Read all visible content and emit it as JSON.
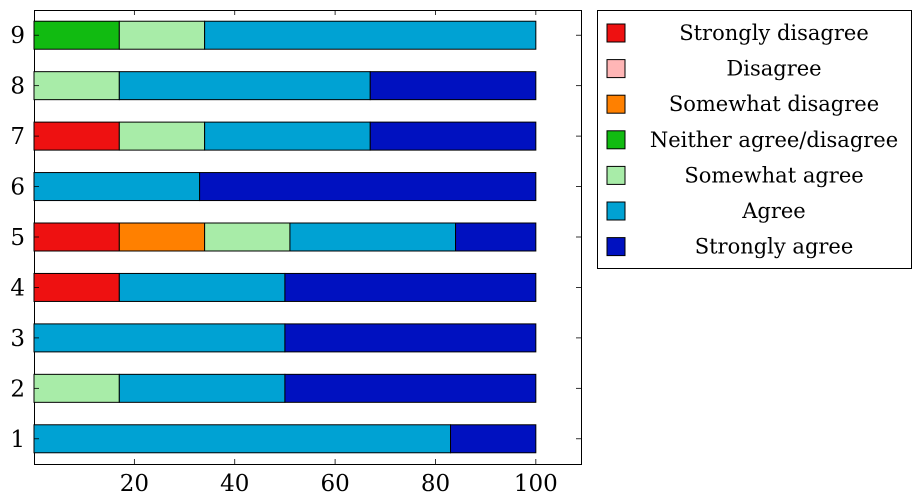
{
  "chart_data": {
    "type": "bar",
    "orientation": "horizontal",
    "stacked": true,
    "categories": [
      "1",
      "2",
      "3",
      "4",
      "5",
      "6",
      "7",
      "8",
      "9"
    ],
    "xlim": [
      0,
      109
    ],
    "x_ticks": [
      20,
      40,
      60,
      80,
      100
    ],
    "grid": false,
    "legend_position": "right-top",
    "series": [
      {
        "name": "Strongly disagree",
        "color": "#ee1111",
        "values": [
          0,
          0,
          0,
          17,
          17,
          0,
          17,
          0,
          0
        ]
      },
      {
        "name": "Disagree",
        "color": "#ffb6b6",
        "values": [
          0,
          0,
          0,
          0,
          0,
          0,
          0,
          0,
          0
        ]
      },
      {
        "name": "Somewhat disagree",
        "color": "#ff8000",
        "values": [
          0,
          0,
          0,
          0,
          17,
          0,
          0,
          0,
          0
        ]
      },
      {
        "name": "Neither agree/disagree",
        "color": "#11bb11",
        "values": [
          0,
          0,
          0,
          0,
          0,
          0,
          0,
          0,
          17
        ]
      },
      {
        "name": "Somewhat agree",
        "color": "#a8eca8",
        "values": [
          0,
          17,
          0,
          0,
          17,
          0,
          17,
          17,
          17
        ]
      },
      {
        "name": "Agree",
        "color": "#00a2d3",
        "values": [
          83,
          33,
          50,
          33,
          33,
          33,
          33,
          50,
          66
        ]
      },
      {
        "name": "Strongly agree",
        "color": "#0011c0",
        "values": [
          17,
          50,
          50,
          50,
          16,
          67,
          33,
          33,
          0
        ]
      }
    ]
  }
}
